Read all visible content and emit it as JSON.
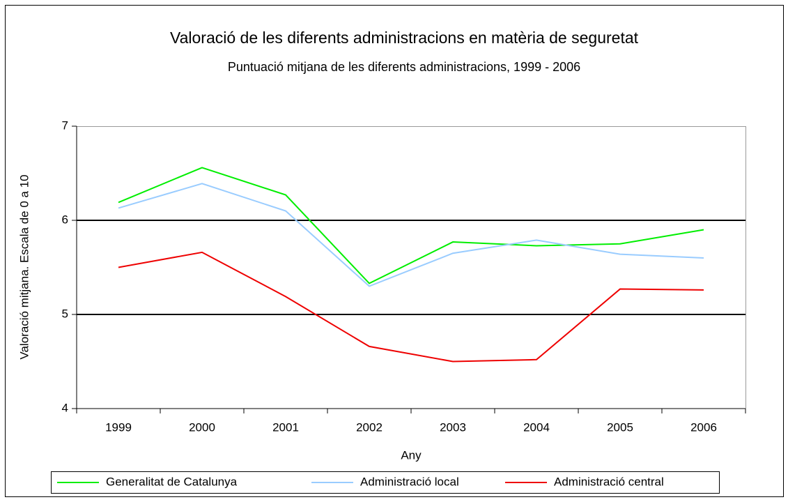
{
  "chart_data": {
    "type": "line",
    "title": "Valoració de les diferents administracions en matèria de seguretat",
    "subtitle": "Puntuació mitjana de les diferents administracions, 1999 - 2006",
    "x_label": "Any",
    "y_label": "Valoració mitjana. Escala de 0 a 10",
    "categories": [
      "1999",
      "2000",
      "2001",
      "2002",
      "2003",
      "2004",
      "2005",
      "2006"
    ],
    "series": [
      {
        "name": "Generalitat de Catalunya",
        "color": "#00ee00",
        "values": [
          6.19,
          6.56,
          6.27,
          5.33,
          5.77,
          5.73,
          5.75,
          5.9
        ]
      },
      {
        "name": "Administració local",
        "color": "#99ccff",
        "values": [
          6.13,
          6.39,
          6.1,
          5.3,
          5.65,
          5.79,
          5.64,
          5.6
        ]
      },
      {
        "name": "Administració central",
        "color": "#ee0000",
        "values": [
          5.5,
          5.66,
          5.19,
          4.66,
          4.5,
          4.52,
          5.27,
          5.26
        ]
      }
    ],
    "ylim": [
      4,
      7
    ],
    "yticks": [
      4,
      5,
      6,
      7
    ],
    "grid": true,
    "legend": "bottom"
  }
}
